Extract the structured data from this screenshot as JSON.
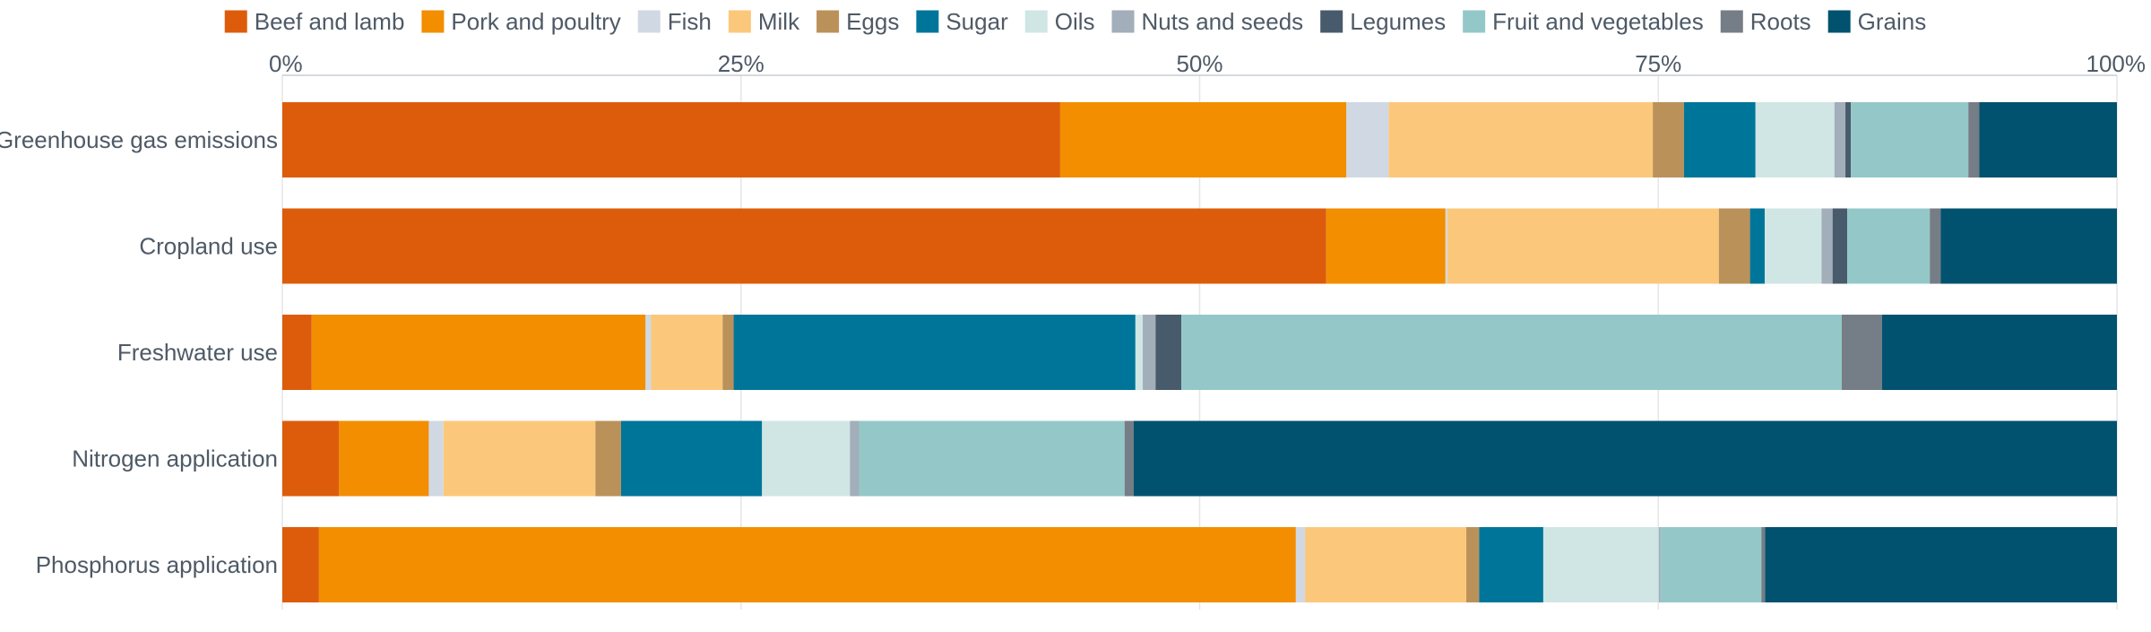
{
  "chart_data": {
    "type": "bar",
    "orientation": "horizontal",
    "stacked": true,
    "normalized": true,
    "xlim": [
      0,
      100
    ],
    "x_ticks": [
      "0%",
      "25%",
      "50%",
      "75%",
      "100%"
    ],
    "grid": true,
    "legend_position": "top",
    "categories": [
      "Greenhouse gas emissions",
      "Cropland use",
      "Freshwater use",
      "Nitrogen application",
      "Phosphorus application"
    ],
    "series": [
      {
        "name": "Beef and lamb",
        "color": "#dd5c0b",
        "values": [
          42.4,
          56.9,
          1.6,
          3.1,
          2.0
        ]
      },
      {
        "name": "Pork and poultry",
        "color": "#f28e00",
        "values": [
          15.6,
          6.5,
          18.2,
          4.9,
          53.3
        ]
      },
      {
        "name": "Fish",
        "color": "#d0d9e3",
        "values": [
          2.3,
          0.1,
          0.3,
          0.8,
          0.5
        ]
      },
      {
        "name": "Milk",
        "color": "#fbc87b",
        "values": [
          14.4,
          14.8,
          3.9,
          8.3,
          8.8
        ]
      },
      {
        "name": "Eggs",
        "color": "#bb915a",
        "values": [
          1.7,
          1.7,
          0.6,
          1.4,
          0.7
        ]
      },
      {
        "name": "Sugar",
        "color": "#00759a",
        "values": [
          3.9,
          0.8,
          21.9,
          7.7,
          3.5
        ]
      },
      {
        "name": "Oils",
        "color": "#d0e6e4",
        "values": [
          4.3,
          3.1,
          0.4,
          4.8,
          6.3
        ]
      },
      {
        "name": "Nuts and seeds",
        "color": "#a2aeb9",
        "values": [
          0.6,
          0.6,
          0.7,
          0.5,
          0.1
        ]
      },
      {
        "name": "Legumes",
        "color": "#485b6c",
        "values": [
          0.3,
          0.8,
          1.4,
          0.0,
          0.0
        ]
      },
      {
        "name": "Fruit and vegetables",
        "color": "#94c8c8",
        "values": [
          6.4,
          4.5,
          36.0,
          14.5,
          5.5
        ]
      },
      {
        "name": "Roots",
        "color": "#757d86",
        "values": [
          0.6,
          0.6,
          2.2,
          0.5,
          0.2
        ]
      },
      {
        "name": "Grains",
        "color": "#00526f",
        "values": [
          7.5,
          9.6,
          12.8,
          53.7,
          19.2
        ]
      }
    ]
  }
}
